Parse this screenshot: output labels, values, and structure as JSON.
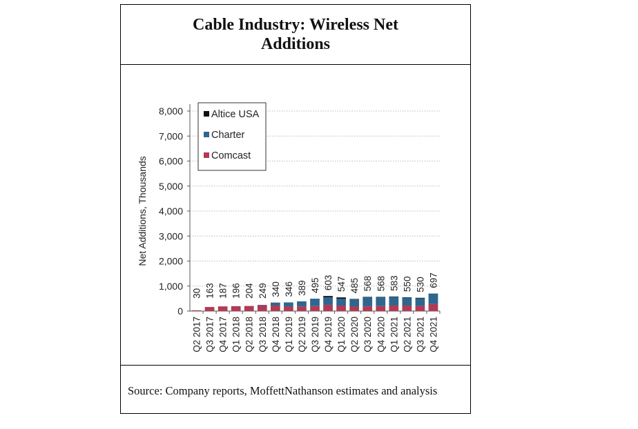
{
  "title": "Cable Industry: Wireless Net Additions",
  "source": "Source: Company reports, MoffettNathanson estimates and analysis",
  "colors": {
    "altice": "#111111",
    "charter": "#2e6690",
    "comcast": "#b23a55",
    "grid": "#b8b8b8"
  },
  "chart_data": {
    "type": "bar",
    "stacked": true,
    "ylabel": "Net Additions, Thousands",
    "xlabel": "",
    "ylim": [
      0,
      8000
    ],
    "yticks": [
      0,
      1000,
      2000,
      3000,
      4000,
      5000,
      6000,
      7000,
      8000
    ],
    "ytick_labels": [
      "0",
      "1,000",
      "2,000",
      "3,000",
      "4,000",
      "5,000",
      "6,000",
      "7,000",
      "8,000"
    ],
    "grid": true,
    "legend_position": "top-left",
    "categories": [
      "Q2 2017",
      "Q3 2017",
      "Q4 2017",
      "Q1 2018",
      "Q2 2018",
      "Q3 2018",
      "Q4 2018",
      "Q1 2019",
      "Q2 2019",
      "Q3 2019",
      "Q4 2019",
      "Q1 2020",
      "Q2 2020",
      "Q3 2020",
      "Q4 2020",
      "Q1 2021",
      "Q2 2021",
      "Q3 2021",
      "Q4 2021"
    ],
    "series": [
      {
        "name": "Comcast",
        "color": "#b23a55",
        "values": [
          30,
          163,
          187,
          196,
          204,
          230,
          220,
          180,
          185,
          200,
          250,
          220,
          180,
          190,
          200,
          220,
          220,
          210,
          280
        ]
      },
      {
        "name": "Charter",
        "color": "#2e6690",
        "values": [
          0,
          0,
          0,
          0,
          0,
          19,
          120,
          166,
          204,
          295,
          303,
          277,
          295,
          368,
          358,
          353,
          320,
          300,
          407
        ]
      },
      {
        "name": "Altice USA",
        "color": "#111111",
        "values": [
          0,
          0,
          0,
          0,
          0,
          0,
          0,
          0,
          0,
          0,
          50,
          50,
          10,
          10,
          10,
          10,
          10,
          20,
          10
        ]
      }
    ],
    "totals": [
      30,
      163,
      187,
      196,
      204,
      249,
      340,
      346,
      389,
      495,
      603,
      547,
      485,
      568,
      568,
      583,
      550,
      530,
      697
    ],
    "legend_order": [
      "Altice USA",
      "Charter",
      "Comcast"
    ]
  }
}
